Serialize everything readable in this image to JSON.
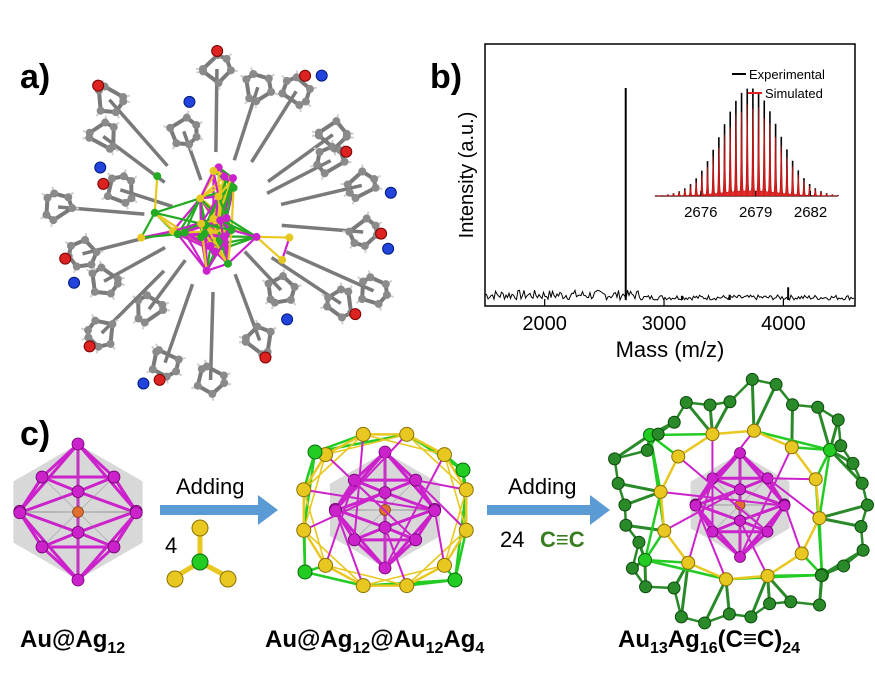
{
  "panels": {
    "a": "a)",
    "b": "b)",
    "c": "c)"
  },
  "chart_data": {
    "type": "line",
    "xlabel": "Mass (m/z)",
    "ylabel": "Intensity (a.u.)",
    "xticks": [
      "2000",
      "3000",
      "4000"
    ],
    "xlim": [
      1500,
      4600
    ],
    "peaks": [
      {
        "x": 2679,
        "y": 1.0
      },
      {
        "x": 4040,
        "y": 0.06
      },
      {
        "x": 3550,
        "y": 0.025
      },
      {
        "x": 3150,
        "y": 0.02
      }
    ],
    "inset": {
      "legend": [
        "Experimental",
        "Simulated"
      ],
      "xticks": [
        "2676",
        "2679",
        "2682"
      ],
      "xlim": [
        2673.5,
        2683.5
      ],
      "series_colors": {
        "Experimental": "#000000",
        "Simulated": "#e02020"
      }
    }
  },
  "scheme": {
    "step1_label": "Adding",
    "step1_count": "4",
    "step2_label": "Adding",
    "step2_count": "24",
    "step2_unit": "C≡C",
    "captions": {
      "left": {
        "main": "Au@Ag",
        "sub": "12"
      },
      "middle": {
        "p1": "Au@Ag",
        "s1": "12",
        "p2": "@Au",
        "s2": "12",
        "p3": "Ag",
        "s3": "4"
      },
      "right": {
        "p1": "Au",
        "s1": "13",
        "p2": "Ag",
        "s2": "16",
        "p3": "(C≡C)",
        "s3": "24"
      }
    }
  },
  "colors": {
    "ag": "#cc22cc",
    "au_core": "#e07030",
    "au_shell": "#e8c820",
    "green_atom": "#22aa22",
    "arrow": "#5b9bd5",
    "ce_text": "#3a7d20"
  }
}
